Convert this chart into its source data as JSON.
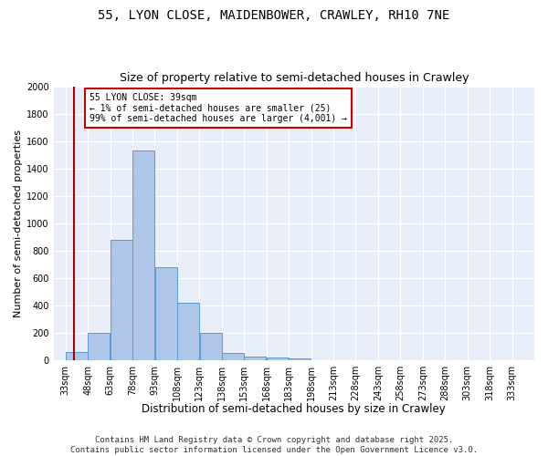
{
  "title1": "55, LYON CLOSE, MAIDENBOWER, CRAWLEY, RH10 7NE",
  "title2": "Size of property relative to semi-detached houses in Crawley",
  "xlabel": "Distribution of semi-detached houses by size in Crawley",
  "ylabel": "Number of semi-detached properties",
  "footer1": "Contains HM Land Registry data © Crown copyright and database right 2025.",
  "footer2": "Contains public sector information licensed under the Open Government Licence v3.0.",
  "bin_labels": [
    "33sqm",
    "48sqm",
    "63sqm",
    "78sqm",
    "93sqm",
    "108sqm",
    "123sqm",
    "138sqm",
    "153sqm",
    "168sqm",
    "183sqm",
    "198sqm",
    "213sqm",
    "228sqm",
    "243sqm",
    "258sqm",
    "273sqm",
    "288sqm",
    "303sqm",
    "318sqm",
    "333sqm"
  ],
  "bin_left_edges": [
    33,
    48,
    63,
    78,
    93,
    108,
    123,
    138,
    153,
    168,
    183,
    198,
    213,
    228,
    243,
    258,
    273,
    288,
    303,
    318,
    333
  ],
  "bar_heights": [
    60,
    200,
    880,
    1530,
    680,
    420,
    200,
    55,
    25,
    20,
    15,
    0,
    0,
    0,
    0,
    0,
    0,
    0,
    0,
    0,
    0
  ],
  "bar_color": "#aec6e8",
  "bar_edge_color": "#5b9bd5",
  "property_size": 39,
  "red_line_color": "#aa0000",
  "annotation_text": "55 LYON CLOSE: 39sqm\n← 1% of semi-detached houses are smaller (25)\n99% of semi-detached houses are larger (4,001) →",
  "annotation_box_color": "#ffffff",
  "annotation_border_color": "#cc0000",
  "ylim": [
    0,
    2000
  ],
  "yticks": [
    0,
    200,
    400,
    600,
    800,
    1000,
    1200,
    1400,
    1600,
    1800,
    2000
  ],
  "bg_color": "#e8eef8",
  "grid_color": "#ffffff",
  "fig_bg_color": "#ffffff",
  "title1_fontsize": 10,
  "title2_fontsize": 9,
  "xlabel_fontsize": 8.5,
  "ylabel_fontsize": 8,
  "tick_fontsize": 7,
  "footer_fontsize": 6.5,
  "bin_width": 15,
  "xlim_left": 25,
  "xlim_right": 348
}
